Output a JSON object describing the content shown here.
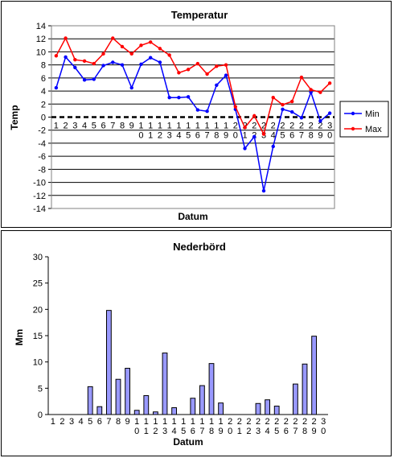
{
  "chart_data": [
    {
      "type": "line",
      "title": "Temperatur",
      "xlabel": "Datum",
      "ylabel": "Temp",
      "ylim": [
        -14,
        14
      ],
      "yticks": [
        "-14",
        "-12",
        "-10",
        "-8",
        "-6",
        "-4",
        "-2",
        "0",
        "2",
        "4",
        "6",
        "8",
        "10",
        "12",
        "14"
      ],
      "xticks": [
        [
          "1"
        ],
        [
          "2"
        ],
        [
          "3"
        ],
        [
          "4"
        ],
        [
          "5"
        ],
        [
          "6"
        ],
        [
          "7"
        ],
        [
          "8"
        ],
        [
          "9"
        ],
        [
          "1",
          "0"
        ],
        [
          "1",
          "1"
        ],
        [
          "1",
          "2"
        ],
        [
          "1",
          "3"
        ],
        [
          "1",
          "4"
        ],
        [
          "1",
          "5"
        ],
        [
          "1",
          "6"
        ],
        [
          "1",
          "7"
        ],
        [
          "1",
          "8"
        ],
        [
          "1",
          "9"
        ],
        [
          "2",
          "0"
        ],
        [
          "2",
          "1"
        ],
        [
          "2",
          "2"
        ],
        [
          "2",
          "3"
        ],
        [
          "2",
          "4"
        ],
        [
          "2",
          "5"
        ],
        [
          "2",
          "6"
        ],
        [
          "2",
          "7"
        ],
        [
          "2",
          "8"
        ],
        [
          "2",
          "9"
        ],
        [
          "3",
          "0"
        ]
      ],
      "x": [
        1,
        2,
        3,
        4,
        5,
        6,
        7,
        8,
        9,
        10,
        11,
        12,
        13,
        14,
        15,
        16,
        17,
        18,
        19,
        20,
        21,
        22,
        23,
        24,
        25,
        26,
        27,
        28,
        29,
        30
      ],
      "grid": true,
      "legend": "right",
      "series": [
        {
          "name": "Min",
          "color": "#0000ff",
          "values": [
            4.5,
            9.2,
            7.6,
            5.7,
            5.8,
            7.9,
            8.4,
            8.0,
            4.5,
            8.1,
            9.1,
            8.4,
            3.0,
            3.0,
            3.1,
            1.1,
            0.9,
            4.9,
            6.4,
            1.2,
            -4.8,
            -3.0,
            -11.3,
            -4.5,
            1.2,
            0.8,
            -0.1,
            3.8,
            -0.6,
            0.6
          ]
        },
        {
          "name": "Max",
          "color": "#ff0000",
          "values": [
            9.4,
            12.1,
            8.8,
            8.6,
            8.2,
            9.7,
            12.1,
            10.8,
            9.7,
            11.0,
            11.5,
            10.5,
            9.5,
            6.8,
            7.3,
            8.2,
            6.6,
            7.8,
            8.0,
            1.6,
            -1.6,
            0.2,
            -2.6,
            3.0,
            1.9,
            2.4,
            6.1,
            4.2,
            3.8,
            5.2
          ]
        }
      ]
    },
    {
      "type": "bar",
      "title": "Nederbörd",
      "xlabel": "Datum",
      "ylabel": "Mm",
      "ylim": [
        0,
        30
      ],
      "yticks": [
        "0",
        "5",
        "10",
        "15",
        "20",
        "25",
        "30"
      ],
      "xticks": [
        [
          "1"
        ],
        [
          "2"
        ],
        [
          "3"
        ],
        [
          "4"
        ],
        [
          "5"
        ],
        [
          "6"
        ],
        [
          "7"
        ],
        [
          "8"
        ],
        [
          "9"
        ],
        [
          "1",
          "0"
        ],
        [
          "1",
          "1"
        ],
        [
          "1",
          "2"
        ],
        [
          "1",
          "3"
        ],
        [
          "1",
          "4"
        ],
        [
          "1",
          "5"
        ],
        [
          "1",
          "6"
        ],
        [
          "1",
          "7"
        ],
        [
          "1",
          "8"
        ],
        [
          "1",
          "9"
        ],
        [
          "2",
          "0"
        ],
        [
          "2",
          "1"
        ],
        [
          "2",
          "2"
        ],
        [
          "2",
          "3"
        ],
        [
          "2",
          "4"
        ],
        [
          "2",
          "5"
        ],
        [
          "2",
          "6"
        ],
        [
          "2",
          "7"
        ],
        [
          "2",
          "8"
        ],
        [
          "2",
          "9"
        ],
        [
          "3",
          "0"
        ]
      ],
      "x": [
        1,
        2,
        3,
        4,
        5,
        6,
        7,
        8,
        9,
        10,
        11,
        12,
        13,
        14,
        15,
        16,
        17,
        18,
        19,
        20,
        21,
        22,
        23,
        24,
        25,
        26,
        27,
        28,
        29,
        30
      ],
      "bar_color": "#9999ff",
      "values": [
        0,
        0,
        0,
        0,
        5.3,
        1.5,
        19.8,
        6.7,
        8.8,
        0.8,
        3.6,
        0.5,
        11.7,
        1.3,
        0,
        3.1,
        5.5,
        9.7,
        2.2,
        0,
        0,
        0,
        2.1,
        2.8,
        1.6,
        0,
        5.8,
        9.6,
        14.9,
        0
      ]
    }
  ]
}
